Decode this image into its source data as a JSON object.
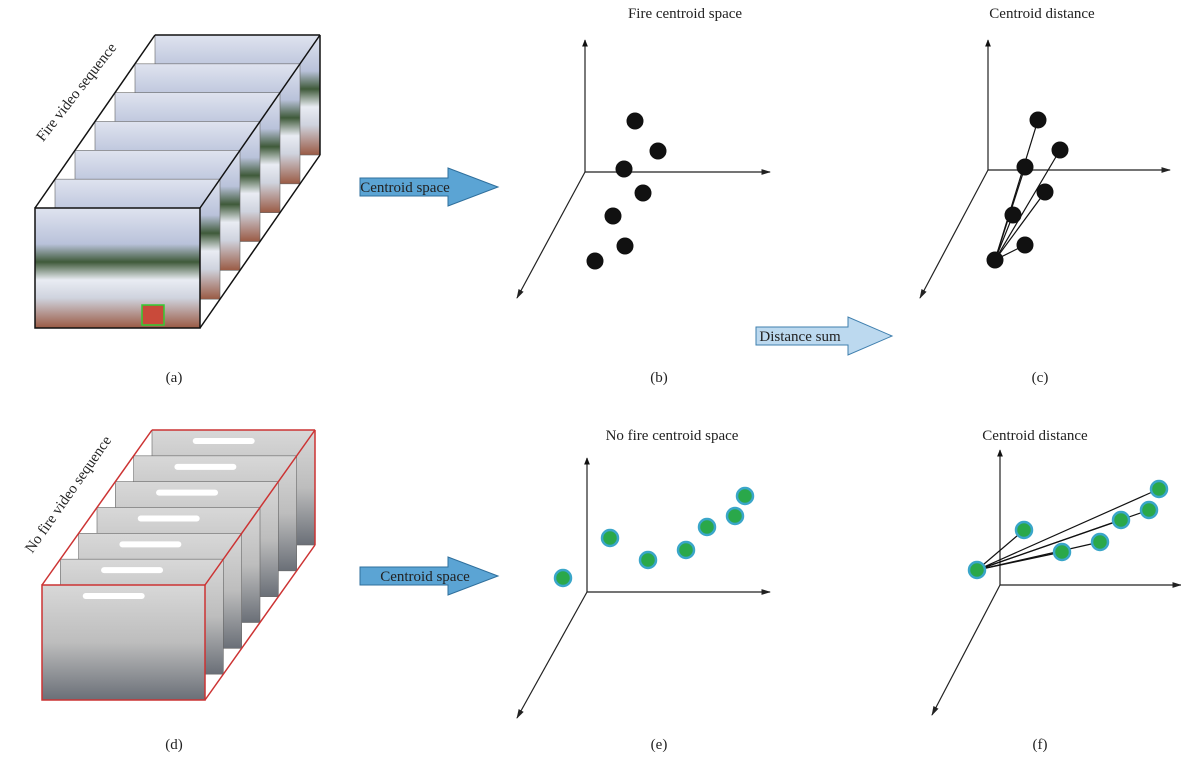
{
  "panels": [
    {
      "title": "Fire video sequence",
      "caption": "(a)"
    },
    {
      "title": "Fire centroid space",
      "caption": "(b)"
    },
    {
      "title": "Centroid distance",
      "caption": "(c)"
    },
    {
      "title": "No fire video sequence",
      "caption": "(d)"
    },
    {
      "title": "No fire centroid space",
      "caption": "(e)"
    },
    {
      "title": "Centroid distance",
      "caption": "(f)"
    }
  ],
  "arrows": [
    {
      "label": "Centroid space"
    },
    {
      "label": "Distance sum"
    },
    {
      "label": "Centroid space"
    }
  ]
}
